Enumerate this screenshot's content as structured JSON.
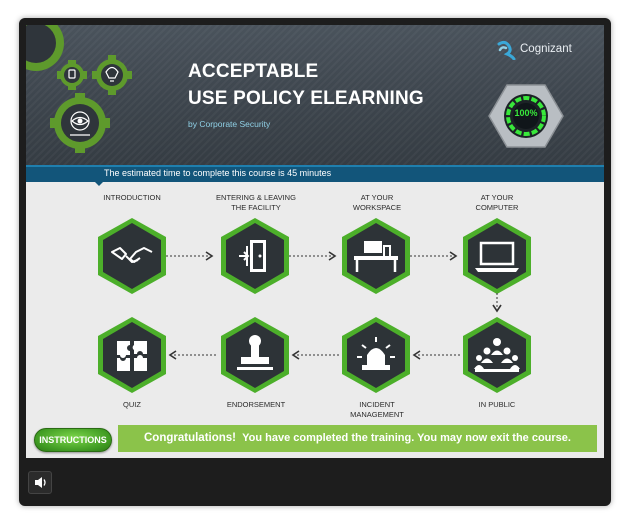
{
  "header": {
    "title_line1": "ACCEPTABLE",
    "title_line2": "USE POLICY ELEARNING",
    "byline": "by Corporate Security",
    "logo": "Cognizant",
    "progress_badge": "100%",
    "accent_green": "#4caf2a"
  },
  "banner": {
    "text": "The estimated time to complete this course is 45 minutes"
  },
  "modules": [
    {
      "label": "INTRODUCTION",
      "icon": "handshake-icon"
    },
    {
      "label": "ENTERING & LEAVING\nTHE FACILITY",
      "icon": "door-exit-icon"
    },
    {
      "label": "AT YOUR\nWORKSPACE",
      "icon": "desk-chair-icon"
    },
    {
      "label": "AT YOUR\nCOMPUTER",
      "icon": "laptop-icon"
    },
    {
      "label": "IN PUBLIC",
      "icon": "audience-icon"
    },
    {
      "label": "INCIDENT\nMANAGEMENT",
      "icon": "alarm-siren-icon"
    },
    {
      "label": "ENDORSEMENT",
      "icon": "stamp-icon"
    },
    {
      "label": "QUIZ",
      "icon": "puzzle-icon"
    }
  ],
  "footer": {
    "instructions_label": "INSTRUCTIONS",
    "congrats_lead": "Congratulations!",
    "congrats_text": "You have completed the training. You may now exit the course."
  },
  "player": {
    "volume_icon": "speaker-icon"
  }
}
